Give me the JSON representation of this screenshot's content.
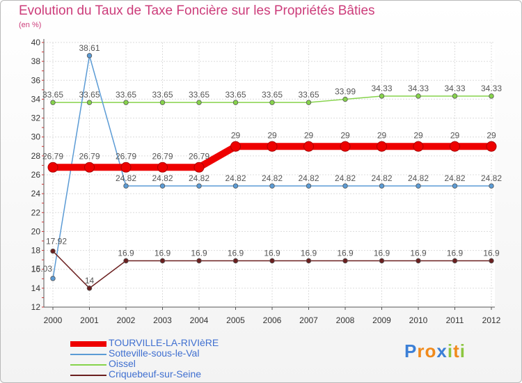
{
  "title": "Evolution du Taux de Taxe Foncière sur les Propriétés Bâties",
  "unit_label": "(en %)",
  "colors": {
    "title": "#cc3c7a",
    "tourville": "#ee0000",
    "sotteville": "#5b9bd5",
    "oissel": "#86d34b",
    "criquebeuf": "#6b1f1f"
  },
  "chart_data": {
    "type": "line",
    "title": "Evolution du Taux de Taxe Foncière sur les Propriétés Bâties",
    "ylabel": "(en %)",
    "xlabel": "",
    "ylim": [
      12,
      40
    ],
    "y_ticks": [
      12,
      14,
      16,
      18,
      20,
      22,
      24,
      26,
      28,
      30,
      32,
      34,
      36,
      38,
      40
    ],
    "grid": true,
    "categories": [
      "2000",
      "2001",
      "2002",
      "2003",
      "2004",
      "2005",
      "2006",
      "2007",
      "2008",
      "2009",
      "2010",
      "2011",
      "2012"
    ],
    "series": [
      {
        "name": "TOURVILLE-LA-RIVIèRE",
        "color": "#ee0000",
        "values": [
          26.79,
          26.79,
          26.79,
          26.79,
          26.79,
          29,
          29,
          29,
          29,
          29,
          29,
          29,
          29
        ],
        "labels": [
          "26.79",
          "26.79",
          "26.79",
          "26.79",
          "26.79",
          "29",
          "29",
          "29",
          "29",
          "29",
          "29",
          "29",
          "29"
        ]
      },
      {
        "name": "Sotteville-sous-le-Val",
        "color": "#5b9bd5",
        "values": [
          15.03,
          38.61,
          24.82,
          24.82,
          24.82,
          24.82,
          24.82,
          24.82,
          24.82,
          24.82,
          24.82,
          24.82,
          24.82
        ],
        "labels": [
          "15.03",
          "38.61",
          "24.82",
          "24.82",
          "24.82",
          "24.82",
          "24.82",
          "24.82",
          "24.82",
          "24.82",
          "24.82",
          "24.82",
          "24.82"
        ]
      },
      {
        "name": "Oissel",
        "color": "#86d34b",
        "values": [
          33.65,
          33.65,
          33.65,
          33.65,
          33.65,
          33.65,
          33.65,
          33.65,
          33.99,
          34.33,
          34.33,
          34.33,
          34.33
        ],
        "labels": [
          "33.65",
          "33.65",
          "33.65",
          "33.65",
          "33.65",
          "33.65",
          "33.65",
          "33.65",
          "33.99",
          "34.33",
          "34.33",
          "34.33",
          "34.33"
        ]
      },
      {
        "name": "Criquebeuf-sur-Seine",
        "color": "#6b1f1f",
        "values": [
          17.92,
          14,
          16.9,
          16.9,
          16.9,
          16.9,
          16.9,
          16.9,
          16.9,
          16.9,
          16.9,
          16.9,
          16.9
        ],
        "labels": [
          "17.92",
          "14",
          "16.9",
          "16.9",
          "16.9",
          "16.9",
          "16.9",
          "16.9",
          "16.9",
          "16.9",
          "16.9",
          "16.9",
          "16.9"
        ]
      }
    ]
  },
  "legend": [
    {
      "label": "TOURVILLE-LA-RIVIèRE",
      "color": "#ee0000",
      "thickness": "bold"
    },
    {
      "label": "Sotteville-sous-le-Val",
      "color": "#5b9bd5",
      "thickness": "thin"
    },
    {
      "label": "Oissel",
      "color": "#86d34b",
      "thickness": "thin"
    },
    {
      "label": "Criquebeuf-sur-Seine",
      "color": "#6b1f1f",
      "thickness": "thin"
    }
  ],
  "logo": {
    "text": "Proxiti",
    "letters": [
      "P",
      "r",
      "o",
      "x",
      "i",
      "t",
      "i"
    ]
  }
}
